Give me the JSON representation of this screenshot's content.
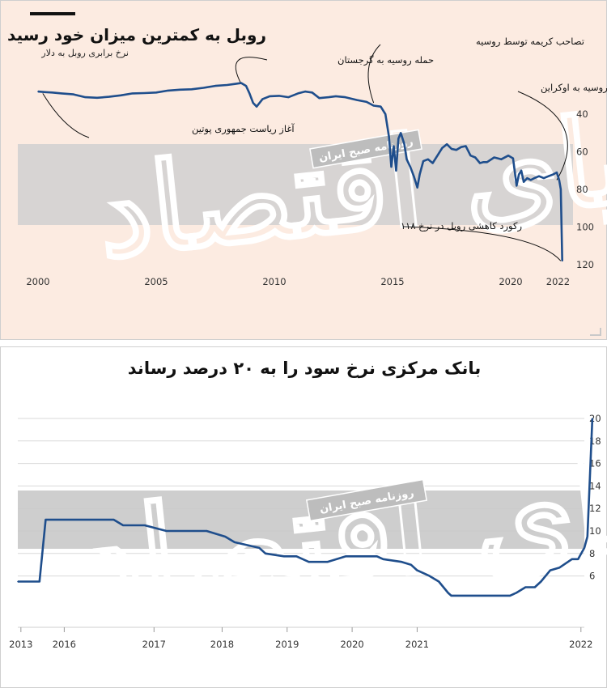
{
  "chart_data": [
    {
      "type": "line",
      "title": "روبل به کمترین میزان خود رسید",
      "subtitle": "نرخ برابری روبل به دلار",
      "colors": {
        "line": "#1f4e8c",
        "band": "#d0d0d0",
        "background": "#fcebe1"
      },
      "y_axis": {
        "position": "right",
        "inverted": true,
        "range": [
          20,
          125
        ],
        "ticks": [
          40,
          60,
          80,
          100,
          120
        ]
      },
      "x_axis": {
        "range": [
          2000,
          2022.6
        ],
        "ticks": [
          2000,
          2005,
          2010,
          2015,
          2020,
          2022
        ]
      },
      "series": [
        {
          "x": [
            2000,
            2000.3,
            2000.6,
            2001.0,
            2001.5,
            2002.0,
            2002.5,
            2003.0,
            2003.5,
            2004.0,
            2004.5,
            2005.0,
            2005.5,
            2006.0,
            2006.5,
            2007.0,
            2007.5,
            2008.0,
            2008.3,
            2008.6,
            2008.8,
            2008.95,
            2009.1,
            2009.25,
            2009.5,
            2009.8,
            2010.2,
            2010.6,
            2011.0,
            2011.3,
            2011.6,
            2011.9,
            2012.3,
            2012.6,
            2013.0,
            2013.5,
            2013.9,
            2014.2,
            2014.5,
            2014.7,
            2014.85,
            2014.95,
            2015.05,
            2015.15,
            2015.25,
            2015.35,
            2015.5,
            2015.6,
            2015.75,
            2015.9,
            2016.05,
            2016.15,
            2016.3,
            2016.5,
            2016.7,
            2016.9,
            2017.1,
            2017.3,
            2017.5,
            2017.7,
            2017.9,
            2018.1,
            2018.3,
            2018.5,
            2018.7,
            2018.85,
            2019.0,
            2019.3,
            2019.6,
            2019.9,
            2020.1,
            2020.25,
            2020.35,
            2020.45,
            2020.55,
            2020.7,
            2020.85,
            2021.0,
            2021.2,
            2021.4,
            2021.6,
            2021.8,
            2021.95,
            2022.05,
            2022.12,
            2022.18
          ],
          "y": [
            28,
            28.3,
            28.5,
            29,
            29.5,
            31,
            31.3,
            30.8,
            30,
            29,
            28.8,
            28.5,
            27.5,
            27,
            26.8,
            26,
            25,
            24.5,
            24,
            23.5,
            25,
            29,
            34,
            36,
            32,
            30.5,
            30.3,
            31,
            29,
            28,
            28.5,
            31.5,
            31,
            30.5,
            31,
            32.5,
            33.5,
            35.5,
            36,
            40,
            52,
            68,
            57,
            70,
            53,
            50,
            56,
            64,
            68,
            73,
            79,
            72,
            65,
            64,
            66,
            62,
            58,
            56,
            58.5,
            59,
            57.5,
            57,
            62,
            63,
            66,
            65.5,
            65.5,
            63,
            64,
            62,
            63.5,
            78,
            72,
            70,
            76,
            74,
            75,
            74,
            73,
            74,
            73,
            72,
            71,
            75,
            80,
            118
          ]
        }
      ],
      "annotations": [
        {
          "text": "آغاز ریاست جمهوری پوتین",
          "x": 2000.2,
          "y": 29
        },
        {
          "text": "حمله روسیه به گرجستان",
          "x": 2008.6,
          "y": 24
        },
        {
          "text": "تصاحب کریمه توسط روسیه",
          "x": 2014.2,
          "y": 34
        },
        {
          "text": "حمله روسیه به اوکراین",
          "x": 2021.95,
          "y": 75
        },
        {
          "text": "رکورد کاهشی روبل در نرخ ۱۱۸",
          "x": 2022.12,
          "y": 118
        }
      ]
    },
    {
      "type": "line",
      "title": "بانک مرکزی نرخ سود را به ۲۰ درصد رساند",
      "colors": {
        "line": "#1f4e8c",
        "band": "#d0d0d0",
        "grid": "#d9d9d9"
      },
      "y_axis": {
        "position": "right",
        "range": [
          4,
          20.4
        ],
        "ticks": [
          6,
          8,
          10,
          12,
          14,
          16,
          18,
          20
        ],
        "grid": true
      },
      "x_axis": {
        "range": [
          2013,
          2022.2
        ],
        "tick_labels": [
          "2013",
          "2016",
          "2017",
          "2018",
          "2019",
          "2020",
          "2021",
          "2022"
        ],
        "tick_positions": [
          2013.05,
          2013.75,
          2015.2,
          2016.3,
          2017.35,
          2018.4,
          2019.45,
          2020.5
        ]
      },
      "series": [
        {
          "x": [
            2013.0,
            2013.3,
            2013.35,
            2013.45,
            2013.75,
            2014.5,
            2014.55,
            2014.7,
            2015.05,
            2015.4,
            2015.55,
            2015.85,
            2016.05,
            2016.35,
            2016.5,
            2016.9,
            2017.0,
            2017.3,
            2017.5,
            2017.7,
            2017.85,
            2018.0,
            2018.15,
            2018.3,
            2018.45,
            2018.6,
            2018.8,
            2018.9,
            2019.2,
            2019.35,
            2019.45,
            2019.55,
            2019.65,
            2019.8,
            2019.95,
            2020.0,
            2020.45,
            2020.55,
            2020.65,
            2020.8,
            2020.95,
            2021.05,
            2021.2,
            2021.35,
            2021.45,
            2021.6,
            2021.75,
            2021.95,
            2022.05,
            2022.15,
            2022.2
          ],
          "y": [
            5.5,
            5.5,
            5.5,
            11,
            11,
            11,
            11,
            10.5,
            10.5,
            10,
            10,
            10,
            10,
            9.5,
            9,
            8.5,
            8,
            7.75,
            7.75,
            7.25,
            7.25,
            7.25,
            7.5,
            7.75,
            7.75,
            7.75,
            7.75,
            7.5,
            7.25,
            7,
            6.5,
            6.25,
            6,
            5.5,
            4.5,
            4.25,
            4.25,
            4.25,
            4.25,
            4.25,
            4.25,
            4.5,
            5,
            5,
            5.5,
            6.5,
            6.75,
            7.5,
            7.5,
            8.5,
            9.5
          ]
        },
        {
          "x": [
            2022.2,
            2022.28
          ],
          "y": [
            9.5,
            20
          ]
        }
      ]
    }
  ],
  "watermark": {
    "brand_script": "دنیای اقتصاد",
    "stamp": "روزنامه صبح ایران"
  }
}
